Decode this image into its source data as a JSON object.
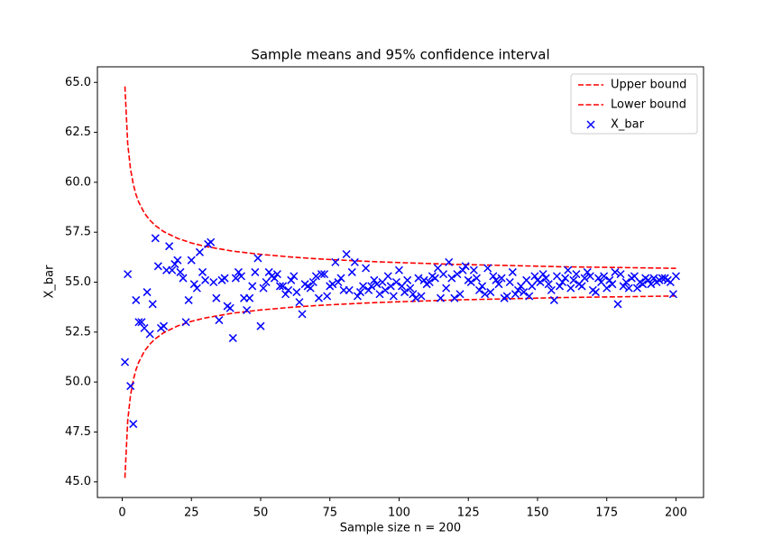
{
  "chart_data": {
    "type": "scatter",
    "title": "Sample means and 95% confidence interval",
    "xlabel": "Sample size n = 200",
    "ylabel": "X_bar",
    "xlim": [
      -8.95,
      209.95
    ],
    "ylim": [
      44.22,
      65.78
    ],
    "xticks": [
      0,
      25,
      50,
      75,
      100,
      125,
      150,
      175,
      200
    ],
    "yticks": [
      {
        "value": 45,
        "label": "45.0"
      },
      47.5,
      {
        "value": 50,
        "label": "50.0"
      },
      52.5,
      {
        "value": 55,
        "label": "55.0"
      },
      57.5,
      {
        "value": 60,
        "label": "60.0"
      },
      62.5,
      {
        "value": 65,
        "label": "65.0"
      }
    ],
    "legend": "upper right",
    "series": [
      {
        "name": "Upper bound",
        "color": "#ff0000",
        "style": "dashed-line",
        "x": [
          1,
          2,
          3,
          4,
          5,
          6,
          8,
          10,
          12,
          15,
          20,
          25,
          30,
          40,
          50,
          60,
          70,
          80,
          90,
          100,
          120,
          140,
          160,
          180,
          200
        ],
        "values": [
          64.8,
          61.93,
          60.66,
          59.9,
          59.38,
          59.0,
          58.46,
          58.1,
          57.83,
          57.53,
          57.19,
          56.96,
          56.79,
          56.55,
          56.39,
          56.27,
          56.17,
          56.1,
          56.03,
          55.98,
          55.89,
          55.83,
          55.77,
          55.73,
          55.69
        ]
      },
      {
        "name": "Lower bound",
        "color": "#ff0000",
        "style": "dashed-line",
        "x": [
          1,
          2,
          3,
          4,
          5,
          6,
          8,
          10,
          12,
          15,
          20,
          25,
          30,
          40,
          50,
          60,
          70,
          80,
          90,
          100,
          120,
          140,
          160,
          180,
          200
        ],
        "values": [
          45.2,
          48.07,
          49.34,
          50.1,
          50.62,
          51.0,
          51.54,
          51.9,
          52.17,
          52.47,
          52.81,
          53.04,
          53.21,
          53.45,
          53.61,
          53.73,
          53.83,
          53.9,
          53.97,
          54.02,
          54.11,
          54.17,
          54.23,
          54.27,
          54.31
        ]
      },
      {
        "name": "X_bar",
        "color": "#0000ff",
        "style": "x-marker",
        "x": [
          1,
          2,
          3,
          4,
          5,
          6,
          7,
          8,
          9,
          10,
          11,
          12,
          13,
          14,
          15,
          16,
          17,
          18,
          19,
          20,
          21,
          22,
          23,
          24,
          25,
          26,
          27,
          28,
          29,
          30,
          31,
          32,
          33,
          34,
          35,
          36,
          37,
          38,
          39,
          40,
          41,
          42,
          43,
          44,
          45,
          46,
          47,
          48,
          49,
          50,
          51,
          52,
          53,
          54,
          55,
          56,
          57,
          58,
          59,
          60,
          61,
          62,
          63,
          64,
          65,
          66,
          67,
          68,
          69,
          70,
          71,
          72,
          73,
          74,
          75,
          76,
          77,
          78,
          79,
          80,
          81,
          82,
          83,
          84,
          85,
          86,
          87,
          88,
          89,
          90,
          91,
          92,
          93,
          94,
          95,
          96,
          97,
          98,
          99,
          100,
          101,
          102,
          103,
          104,
          105,
          106,
          107,
          108,
          109,
          110,
          111,
          112,
          113,
          114,
          115,
          116,
          117,
          118,
          119,
          120,
          121,
          122,
          123,
          124,
          125,
          126,
          127,
          128,
          129,
          130,
          131,
          132,
          133,
          134,
          135,
          136,
          137,
          138,
          139,
          140,
          141,
          142,
          143,
          144,
          145,
          146,
          147,
          148,
          149,
          150,
          151,
          152,
          153,
          154,
          155,
          156,
          157,
          158,
          159,
          160,
          161,
          162,
          163,
          164,
          165,
          166,
          167,
          168,
          169,
          170,
          171,
          172,
          173,
          174,
          175,
          176,
          177,
          178,
          179,
          180,
          181,
          182,
          183,
          184,
          185,
          186,
          187,
          188,
          189,
          190,
          191,
          192,
          193,
          194,
          195,
          196,
          197,
          198,
          199,
          200
        ],
        "values": [
          51.0,
          55.4,
          49.8,
          47.9,
          54.1,
          53.0,
          53.0,
          52.7,
          54.5,
          52.4,
          53.9,
          57.2,
          55.8,
          52.7,
          52.8,
          55.6,
          56.8,
          55.6,
          55.9,
          56.1,
          55.5,
          55.2,
          53.0,
          54.1,
          56.1,
          54.9,
          54.7,
          56.5,
          55.5,
          55.1,
          56.9,
          57.0,
          55.0,
          54.2,
          53.1,
          55.1,
          55.2,
          53.8,
          53.7,
          52.2,
          55.2,
          55.5,
          55.3,
          54.2,
          53.6,
          54.2,
          54.8,
          55.5,
          56.2,
          52.8,
          54.7,
          55.0,
          55.5,
          55.3,
          55.2,
          55.4,
          54.8,
          54.8,
          54.4,
          54.6,
          55.1,
          55.3,
          54.5,
          54.0,
          53.4,
          54.9,
          54.8,
          54.7,
          55.0,
          55.3,
          54.2,
          55.4,
          55.4,
          54.3,
          54.8,
          54.9,
          56.0,
          55.0,
          55.2,
          54.6,
          56.4,
          54.6,
          55.5,
          56.0,
          54.3,
          54.5,
          54.8,
          55.7,
          54.6,
          54.8,
          55.1,
          54.9,
          54.4,
          55.0,
          54.6,
          55.3,
          54.8,
          54.3,
          55.0,
          55.6,
          54.8,
          54.5,
          55.1,
          54.7,
          54.4,
          54.2,
          55.2,
          54.3,
          55.1,
          54.9,
          55.0,
          55.3,
          55.2,
          55.7,
          54.2,
          55.4,
          54.7,
          56.0,
          55.2,
          54.2,
          55.4,
          54.4,
          55.6,
          55.8,
          55.1,
          55.0,
          55.6,
          55.2,
          54.6,
          54.8,
          54.4,
          55.7,
          54.5,
          55.3,
          55.1,
          54.9,
          55.2,
          54.2,
          54.3,
          55.0,
          55.5,
          54.4,
          54.6,
          54.8,
          54.5,
          55.1,
          54.3,
          54.8,
          55.3,
          55.1,
          55.0,
          55.4,
          55.2,
          54.9,
          54.6,
          54.1,
          55.3,
          54.8,
          55.0,
          55.2,
          55.6,
          54.7,
          55.1,
          55.4,
          54.9,
          54.8,
          55.2,
          55.5,
          55.3,
          54.6,
          54.5,
          55.2,
          55.0,
          55.3,
          54.7,
          55.1,
          54.9,
          55.5,
          53.9,
          55.4,
          54.8,
          55.0,
          54.7,
          55.2,
          55.3,
          54.7,
          55.0,
          54.9,
          55.2,
          55.1,
          54.9,
          55.2,
          55.0,
          55.1,
          55.2,
          55.2,
          55.1,
          55.0,
          54.4,
          55.3
        ]
      }
    ]
  }
}
